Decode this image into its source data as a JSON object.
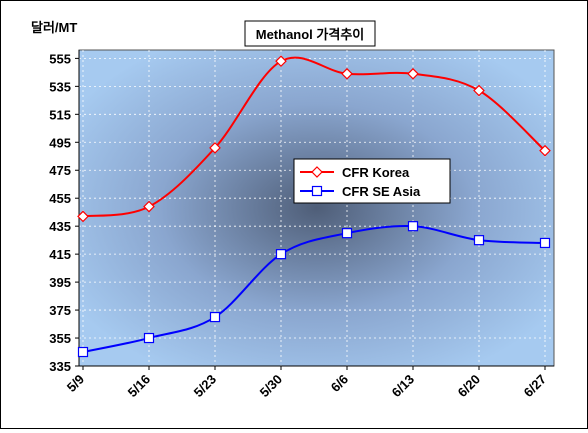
{
  "chart_data": {
    "type": "line",
    "title": "Methanol 가격추이",
    "ylabel": "달러/MT",
    "xlabel": "",
    "x": [
      "5/9",
      "5/16",
      "5/23",
      "5/30",
      "6/6",
      "6/13",
      "6/20",
      "6/27"
    ],
    "y_ticks": [
      335,
      355,
      375,
      395,
      415,
      435,
      455,
      475,
      495,
      515,
      535,
      555
    ],
    "ylim": [
      335,
      561
    ],
    "grid": true,
    "legend_position": "center",
    "series": [
      {
        "name": "CFR Korea",
        "values": [
          442,
          449,
          491,
          553,
          544,
          544,
          532,
          489
        ],
        "color": "#ff0000",
        "marker": "diamond"
      },
      {
        "name": "CFR SE Asia",
        "values": [
          345,
          355,
          370,
          415,
          430,
          435,
          425,
          423
        ],
        "color": "#0000ff",
        "marker": "square"
      }
    ]
  }
}
